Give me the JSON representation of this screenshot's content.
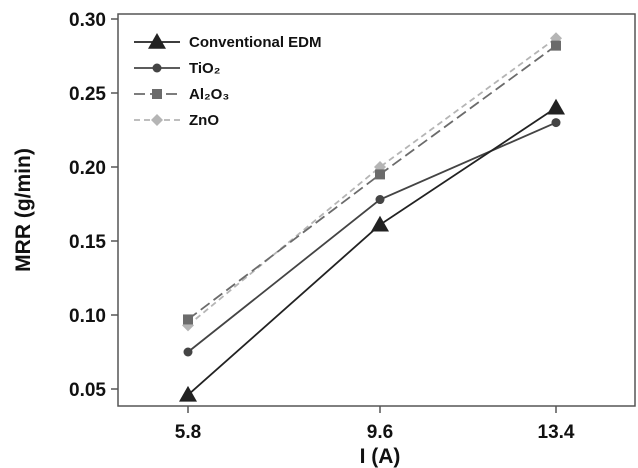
{
  "chart_data": {
    "type": "line",
    "title": "",
    "xlabel": "I (A)",
    "ylabel": "MRR (g/min)",
    "x": [
      5.8,
      9.6,
      13.4
    ],
    "xticks": [
      "5.8",
      "9.6",
      "13.4"
    ],
    "ylim": [
      0.04,
      0.3
    ],
    "yticks": [
      "0.05",
      "0.10",
      "0.15",
      "0.20",
      "0.25",
      "0.30"
    ],
    "grid": false,
    "legend_position": "top-left",
    "series": [
      {
        "name": "Conventional EDM",
        "values": [
          0.046,
          0.161,
          0.24
        ],
        "color": "#222222",
        "marker": "triangle",
        "dash": "solid"
      },
      {
        "name": "TiO₂",
        "values": [
          0.075,
          0.178,
          0.23
        ],
        "color": "#444444",
        "marker": "circle",
        "dash": "solid"
      },
      {
        "name": "Al₂O₃",
        "values": [
          0.097,
          0.195,
          0.282
        ],
        "color": "#6b6b6b",
        "marker": "square",
        "dash": "long-dash"
      },
      {
        "name": "ZnO",
        "values": [
          0.093,
          0.2,
          0.287
        ],
        "color": "#b5b5b5",
        "marker": "diamond",
        "dash": "short-dash"
      }
    ]
  }
}
